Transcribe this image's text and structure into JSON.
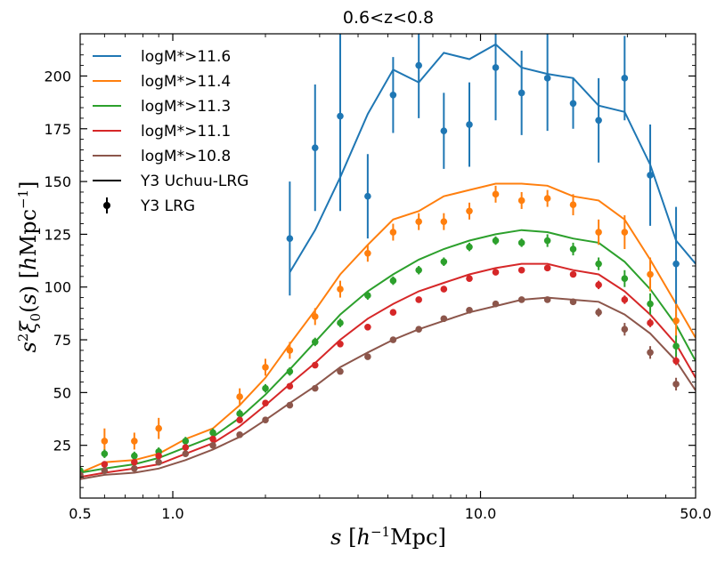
{
  "chart_data": {
    "type": "line",
    "title": "0.6<z<0.8",
    "xlabel": "s [h⁻¹Mpc]",
    "ylabel": "s²ξ₀(s) [hMpc⁻¹]",
    "xscale": "log",
    "xlim": [
      0.5,
      50.0
    ],
    "ylim": [
      0,
      220
    ],
    "xticks": [
      0.5,
      1.0,
      10.0,
      50.0
    ],
    "xtick_labels": [
      "0.5",
      "1.0",
      "10.0",
      "50.0"
    ],
    "yticks": [
      25,
      50,
      75,
      100,
      125,
      150,
      175,
      200
    ],
    "ytick_labels": [
      "25",
      "50",
      "75",
      "100",
      "125",
      "150",
      "175",
      "200"
    ],
    "legend_position": "top-left",
    "legend": [
      {
        "label": "logM*>11.6",
        "color": "#1f77b4",
        "kind": "line"
      },
      {
        "label": "logM*>11.4",
        "color": "#ff7f0e",
        "kind": "line"
      },
      {
        "label": "logM*>11.3",
        "color": "#2ca02c",
        "kind": "line"
      },
      {
        "label": "logM*>11.1",
        "color": "#d62728",
        "kind": "line"
      },
      {
        "label": "logM*>10.8",
        "color": "#8c564b",
        "kind": "line"
      },
      {
        "label": "Y3 Uchuu-LRG",
        "color": "#000000",
        "kind": "line"
      },
      {
        "label": "Y3 LRG",
        "color": "#000000",
        "kind": "errorbar"
      }
    ],
    "model_series": [
      {
        "name": "logM*>11.6",
        "color": "#1f77b4",
        "x": [
          2.4,
          2.9,
          3.5,
          4.3,
          5.2,
          6.3,
          7.6,
          9.2,
          11.2,
          13.6,
          16.5,
          20.0,
          24.2,
          29.4,
          35.6,
          43.2,
          50.0
        ],
        "y": [
          107,
          127,
          152,
          182,
          203,
          197,
          211,
          208,
          215,
          204,
          201,
          199,
          186,
          183,
          158,
          122,
          111
        ]
      },
      {
        "name": "logM*>11.4",
        "color": "#ff7f0e",
        "x": [
          0.5,
          0.6,
          0.75,
          0.9,
          1.1,
          1.35,
          1.65,
          2.0,
          2.4,
          2.9,
          3.5,
          4.3,
          5.2,
          6.3,
          7.6,
          9.2,
          11.2,
          13.6,
          16.5,
          20.0,
          24.2,
          29.4,
          35.6,
          43.2,
          50.0
        ],
        "y": [
          12,
          17,
          18,
          21,
          28,
          33,
          44,
          57,
          73,
          89,
          106,
          120,
          132,
          136,
          143,
          146,
          149,
          149,
          148,
          143,
          141,
          132,
          113,
          92,
          76
        ]
      },
      {
        "name": "logM*>11.3",
        "color": "#2ca02c",
        "x": [
          0.5,
          0.6,
          0.75,
          0.9,
          1.1,
          1.35,
          1.65,
          2.0,
          2.4,
          2.9,
          3.5,
          4.3,
          5.2,
          6.3,
          7.6,
          9.2,
          11.2,
          13.6,
          16.5,
          20.0,
          24.2,
          29.4,
          35.6,
          43.2,
          50.0
        ],
        "y": [
          12,
          14,
          16,
          19,
          24,
          29,
          38,
          49,
          61,
          74,
          87,
          98,
          106,
          113,
          118,
          122,
          125,
          127,
          126,
          123,
          121,
          112,
          99,
          82,
          65
        ]
      },
      {
        "name": "logM*>11.1",
        "color": "#d62728",
        "x": [
          0.5,
          0.6,
          0.75,
          0.9,
          1.1,
          1.35,
          1.65,
          2.0,
          2.4,
          2.9,
          3.5,
          4.3,
          5.2,
          6.3,
          7.6,
          9.2,
          11.2,
          13.6,
          16.5,
          20.0,
          24.2,
          29.4,
          35.6,
          43.2,
          50.0
        ],
        "y": [
          10,
          12,
          14,
          16,
          21,
          26,
          34,
          44,
          54,
          64,
          75,
          85,
          92,
          98,
          102,
          106,
          109,
          111,
          111,
          108,
          106,
          98,
          87,
          73,
          57
        ]
      },
      {
        "name": "logM*>10.8",
        "color": "#8c564b",
        "x": [
          0.5,
          0.6,
          0.75,
          0.9,
          1.1,
          1.35,
          1.65,
          2.0,
          2.4,
          2.9,
          3.5,
          4.3,
          5.2,
          6.3,
          7.6,
          9.2,
          11.2,
          13.6,
          16.5,
          20.0,
          24.2,
          29.4,
          35.6,
          43.2,
          50.0
        ],
        "y": [
          9,
          11,
          12,
          14,
          18,
          23,
          29,
          37,
          45,
          53,
          62,
          69,
          75,
          80,
          84,
          88,
          91,
          94,
          95,
          94,
          93,
          87,
          78,
          65,
          51
        ]
      }
    ],
    "data_series": [
      {
        "name": "logM*>11.6",
        "color": "#1f77b4",
        "x": [
          2.4,
          2.9,
          3.5,
          4.3,
          5.2,
          6.3,
          7.6,
          9.2,
          11.2,
          13.6,
          16.5,
          20.0,
          24.2,
          29.4,
          35.6,
          43.2
        ],
        "y": [
          123,
          166,
          181,
          143,
          191,
          205,
          174,
          177,
          204,
          192,
          199,
          187,
          179,
          199,
          153,
          111
        ],
        "err": [
          27,
          30,
          45,
          20,
          18,
          25,
          18,
          20,
          25,
          20,
          25,
          12,
          20,
          20,
          24,
          27
        ]
      },
      {
        "name": "logM*>11.4",
        "color": "#ff7f0e",
        "x": [
          0.6,
          0.75,
          0.9,
          1.65,
          2.0,
          2.4,
          2.9,
          3.5,
          4.3,
          5.2,
          6.3,
          7.6,
          9.2,
          11.2,
          13.6,
          16.5,
          20.0,
          24.2,
          29.4,
          35.6,
          43.2
        ],
        "y": [
          27,
          27,
          33,
          48,
          62,
          70,
          86,
          99,
          116,
          126,
          131,
          131,
          136,
          144,
          141,
          142,
          139,
          126,
          126,
          106,
          84
        ],
        "err": [
          6,
          4,
          5,
          4,
          4,
          4,
          4,
          4,
          4,
          4,
          4,
          4,
          4,
          4,
          4,
          4,
          5,
          6,
          8,
          8,
          8
        ]
      },
      {
        "name": "logM*>11.3",
        "color": "#2ca02c",
        "x": [
          0.5,
          0.6,
          0.75,
          0.9,
          1.1,
          1.35,
          1.65,
          2.0,
          2.4,
          2.9,
          3.5,
          4.3,
          5.2,
          6.3,
          7.6,
          9.2,
          11.2,
          13.6,
          16.5,
          20.0,
          24.2,
          29.4,
          35.6,
          43.2
        ],
        "y": [
          13,
          21,
          20,
          22,
          27,
          31,
          40,
          52,
          60,
          74,
          83,
          96,
          103,
          108,
          112,
          119,
          122,
          121,
          122,
          118,
          111,
          104,
          92,
          72
        ],
        "err": [
          2,
          2,
          2,
          2,
          2,
          2,
          2,
          2,
          2,
          2,
          2,
          2,
          2,
          2,
          2,
          2,
          2,
          2,
          3,
          3,
          3,
          4,
          5,
          5
        ]
      },
      {
        "name": "logM*>11.1",
        "color": "#d62728",
        "x": [
          0.6,
          0.75,
          0.9,
          1.1,
          1.35,
          1.65,
          2.0,
          2.4,
          2.9,
          3.5,
          4.3,
          5.2,
          6.3,
          7.6,
          9.2,
          11.2,
          13.6,
          16.5,
          20.0,
          24.2,
          29.4,
          35.6,
          43.2
        ],
        "y": [
          16,
          17,
          20,
          24,
          28,
          37,
          45,
          53,
          63,
          73,
          81,
          88,
          94,
          99,
          104,
          107,
          108,
          109,
          106,
          101,
          94,
          83,
          65
        ],
        "err": [
          1,
          1,
          1,
          1,
          1,
          1,
          1,
          1,
          1,
          1,
          1,
          1,
          1,
          1,
          1,
          1,
          1,
          1,
          1,
          2,
          2,
          2,
          2
        ]
      },
      {
        "name": "logM*>10.8",
        "color": "#8c564b",
        "x": [
          0.5,
          0.6,
          0.75,
          0.9,
          1.1,
          1.35,
          1.65,
          2.0,
          2.4,
          2.9,
          3.5,
          4.3,
          5.2,
          6.3,
          7.6,
          9.2,
          11.2,
          13.6,
          16.5,
          20.0,
          24.2,
          29.4,
          35.6,
          43.2
        ],
        "y": [
          11,
          13,
          14,
          17,
          21,
          25,
          30,
          37,
          44,
          52,
          60,
          67,
          75,
          80,
          85,
          89,
          92,
          94,
          94,
          93,
          88,
          80,
          69,
          54
        ],
        "err": [
          1,
          1,
          1,
          1,
          1,
          1,
          1,
          1,
          1,
          1,
          1,
          1,
          1,
          1,
          1,
          1,
          1,
          1,
          1,
          1,
          2,
          3,
          3,
          3
        ]
      }
    ]
  }
}
